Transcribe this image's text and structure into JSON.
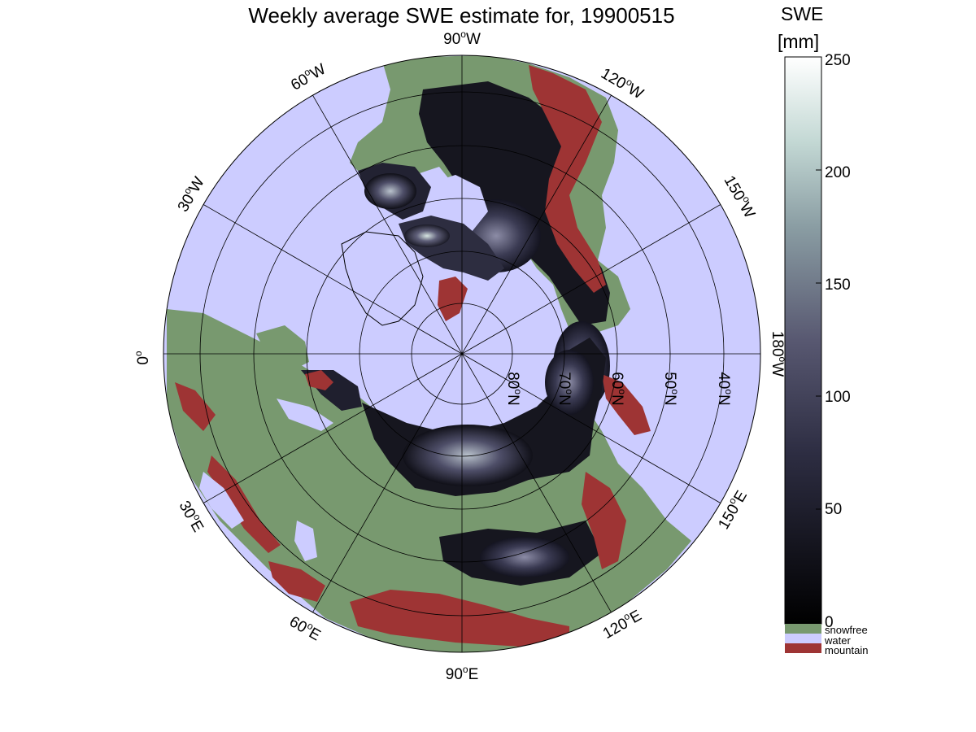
{
  "title": "Weekly average SWE estimate for, 19900515",
  "colorbar": {
    "label_line1": "SWE",
    "label_line2": "[mm]",
    "ticks": [
      "0",
      "50",
      "100",
      "150",
      "200",
      "250"
    ],
    "range": [
      0,
      250
    ]
  },
  "legend": [
    {
      "label": "snowfree",
      "color": "#78996f"
    },
    {
      "label": "water",
      "color": "#ccccff"
    },
    {
      "label": "mountain",
      "color": "#9e3434"
    }
  ],
  "colors": {
    "water": "#ccccff",
    "land": "#78996f",
    "mountain": "#9e3434",
    "swe_low": "#000000",
    "swe_mid": "#4b4b6a",
    "swe_high": "#ffffff"
  },
  "map": {
    "projection": "north polar stereographic",
    "longitude_labels": [
      {
        "text": "90",
        "sup": "o",
        "dir": "W"
      },
      {
        "text": "120",
        "sup": "o",
        "dir": "W"
      },
      {
        "text": "150",
        "sup": "o",
        "dir": "W"
      },
      {
        "text": "180",
        "sup": "o",
        "dir": "W"
      },
      {
        "text": "150",
        "sup": "o",
        "dir": "E"
      },
      {
        "text": "120",
        "sup": "o",
        "dir": "E"
      },
      {
        "text": "90",
        "sup": "o",
        "dir": "E"
      },
      {
        "text": "60",
        "sup": "o",
        "dir": "E"
      },
      {
        "text": "30",
        "sup": "o",
        "dir": "E"
      },
      {
        "text": "0",
        "sup": "o",
        "dir": ""
      },
      {
        "text": "30",
        "sup": "o",
        "dir": "W"
      },
      {
        "text": "60",
        "sup": "o",
        "dir": "W"
      }
    ],
    "latitude_labels": [
      {
        "text": "80",
        "sup": "o",
        "dir": "N"
      },
      {
        "text": "70",
        "sup": "o",
        "dir": "N"
      },
      {
        "text": "60",
        "sup": "o",
        "dir": "N"
      },
      {
        "text": "50",
        "sup": "o",
        "dir": "N"
      },
      {
        "text": "40",
        "sup": "o",
        "dir": "N"
      }
    ]
  }
}
